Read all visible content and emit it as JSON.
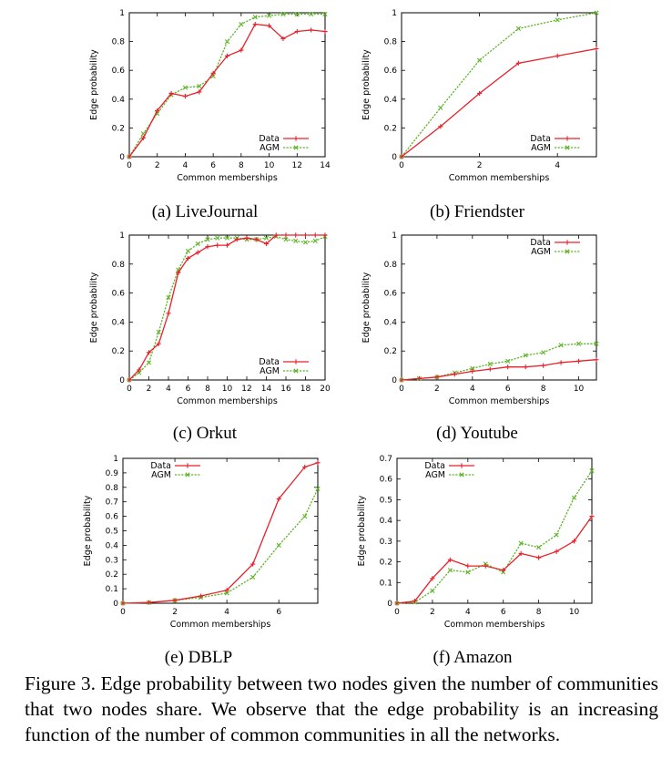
{
  "caption": "Figure 3.    Edge probability between two nodes given the number of communities that two nodes share. We observe that the edge probability is an increasing function of the number of common communities in all the networks.",
  "colors": {
    "data": "#e8202a",
    "agm": "#5fb52a"
  },
  "chart_data": [
    {
      "type": "line",
      "subcaption": "(a)  LiveJournal",
      "xlabel": "Common memberships",
      "ylabel": "Edge probability",
      "xlim": [
        0,
        14
      ],
      "ylim": [
        0,
        1
      ],
      "xticks": [
        0,
        2,
        4,
        6,
        8,
        10,
        12,
        14
      ],
      "yticks": [
        0,
        0.2,
        0.4,
        0.6,
        0.8,
        1
      ],
      "ytick_labels": [
        "0",
        "0.2",
        "0.4",
        "0.6",
        "0.8",
        "1"
      ],
      "legend_position": "bottom-right",
      "series": [
        {
          "name": "Data",
          "x": [
            0,
            1,
            2,
            3,
            4,
            5,
            6,
            7,
            8,
            9,
            10,
            11,
            12,
            13,
            14
          ],
          "y": [
            0,
            0.13,
            0.32,
            0.44,
            0.42,
            0.45,
            0.58,
            0.7,
            0.74,
            0.92,
            0.91,
            0.82,
            0.87,
            0.88,
            0.87
          ]
        },
        {
          "name": "AGM",
          "x": [
            0,
            1,
            2,
            3,
            4,
            5,
            6,
            7,
            8,
            9,
            10,
            11,
            12,
            13,
            14
          ],
          "y": [
            0,
            0.16,
            0.3,
            0.43,
            0.48,
            0.49,
            0.56,
            0.8,
            0.92,
            0.97,
            0.98,
            0.99,
            0.99,
            0.99,
            0.99
          ]
        }
      ]
    },
    {
      "type": "line",
      "subcaption": "(b)  Friendster",
      "xlabel": "Common memberships",
      "ylabel": "Edge probability",
      "xlim": [
        0,
        5
      ],
      "ylim": [
        0,
        1
      ],
      "xticks": [
        0,
        2,
        4
      ],
      "yticks": [
        0,
        0.2,
        0.4,
        0.6,
        0.8,
        1
      ],
      "ytick_labels": [
        "0",
        "0.2",
        "0.4",
        "0.6",
        "0.8",
        "1"
      ],
      "legend_position": "bottom-right",
      "series": [
        {
          "name": "Data",
          "x": [
            0,
            1,
            2,
            3,
            4,
            5
          ],
          "y": [
            0,
            0.21,
            0.44,
            0.65,
            0.7,
            0.75
          ]
        },
        {
          "name": "AGM",
          "x": [
            0,
            1,
            2,
            3,
            4,
            5
          ],
          "y": [
            0,
            0.34,
            0.67,
            0.89,
            0.95,
            1.0
          ]
        }
      ]
    },
    {
      "type": "line",
      "subcaption": "(c)  Orkut",
      "xlabel": "Common memberships",
      "ylabel": "Edge probability",
      "xlim": [
        0,
        20
      ],
      "ylim": [
        0,
        1
      ],
      "xticks": [
        0,
        2,
        4,
        6,
        8,
        10,
        12,
        14,
        16,
        18,
        20
      ],
      "yticks": [
        0,
        0.2,
        0.4,
        0.6,
        0.8,
        1
      ],
      "ytick_labels": [
        "0",
        "0.2",
        "0.4",
        "0.6",
        "0.8",
        "1"
      ],
      "legend_position": "bottom-right",
      "series": [
        {
          "name": "Data",
          "x": [
            0,
            1,
            2,
            3,
            4,
            5,
            6,
            7,
            8,
            9,
            10,
            11,
            12,
            13,
            14,
            15,
            16,
            17,
            18,
            19,
            20
          ],
          "y": [
            0,
            0.07,
            0.19,
            0.25,
            0.46,
            0.74,
            0.84,
            0.88,
            0.92,
            0.93,
            0.93,
            0.97,
            0.98,
            0.97,
            0.94,
            1.0,
            1.0,
            1.0,
            1.0,
            1.0,
            1.0
          ]
        },
        {
          "name": "AGM",
          "x": [
            0,
            1,
            2,
            3,
            4,
            5,
            6,
            7,
            8,
            9,
            10,
            11,
            12,
            13,
            14,
            15,
            16,
            17,
            18,
            19,
            20
          ],
          "y": [
            0,
            0.05,
            0.12,
            0.33,
            0.57,
            0.76,
            0.89,
            0.94,
            0.97,
            0.98,
            0.98,
            0.98,
            0.97,
            0.97,
            0.98,
            0.99,
            0.97,
            0.96,
            0.95,
            0.96,
            0.99
          ]
        }
      ]
    },
    {
      "type": "line",
      "subcaption": "(d)  Youtube",
      "xlabel": "Common memberships",
      "ylabel": "Edge probability",
      "xlim": [
        0,
        11
      ],
      "ylim": [
        0,
        1
      ],
      "xticks": [
        0,
        2,
        4,
        6,
        8,
        10
      ],
      "yticks": [
        0,
        0.2,
        0.4,
        0.6,
        0.8,
        1
      ],
      "ytick_labels": [
        "0",
        "0.2",
        "0.4",
        "0.6",
        "0.8",
        "1"
      ],
      "legend_position": "top-right",
      "series": [
        {
          "name": "Data",
          "x": [
            0,
            1,
            2,
            3,
            4,
            5,
            6,
            7,
            8,
            9,
            10,
            11
          ],
          "y": [
            0,
            0.01,
            0.02,
            0.04,
            0.06,
            0.075,
            0.09,
            0.09,
            0.1,
            0.12,
            0.13,
            0.14
          ]
        },
        {
          "name": "AGM",
          "x": [
            0,
            1,
            2,
            3,
            4,
            5,
            6,
            7,
            8,
            9,
            10,
            11
          ],
          "y": [
            0,
            0.01,
            0.02,
            0.05,
            0.08,
            0.11,
            0.13,
            0.17,
            0.19,
            0.24,
            0.25,
            0.25
          ]
        }
      ]
    },
    {
      "type": "line",
      "subcaption": "(e)  DBLP",
      "xlabel": "Common memberships",
      "ylabel": "Edge probability",
      "xlim": [
        0,
        7.5
      ],
      "ylim": [
        0,
        1
      ],
      "xticks": [
        0,
        2,
        4,
        6
      ],
      "yticks": [
        0,
        0.1,
        0.2,
        0.3,
        0.4,
        0.5,
        0.6,
        0.7,
        0.8,
        0.9,
        1
      ],
      "ytick_labels": [
        "0",
        "0.1",
        "0.2",
        "0.3",
        "0.4",
        "0.5",
        "0.6",
        "0.7",
        "0.8",
        "0.9",
        "1"
      ],
      "legend_position": "top-left",
      "series": [
        {
          "name": "Data",
          "x": [
            0,
            1,
            2,
            3,
            4,
            5,
            6,
            7,
            7.5
          ],
          "y": [
            0,
            0.005,
            0.02,
            0.05,
            0.09,
            0.27,
            0.72,
            0.94,
            0.97
          ]
        },
        {
          "name": "AGM",
          "x": [
            0,
            1,
            2,
            3,
            4,
            5,
            6,
            7,
            7.5
          ],
          "y": [
            0,
            0.005,
            0.02,
            0.04,
            0.07,
            0.18,
            0.4,
            0.6,
            0.79
          ]
        }
      ]
    },
    {
      "type": "line",
      "subcaption": "(f)  Amazon",
      "xlabel": "Common memberships",
      "ylabel": "Edge probability",
      "xlim": [
        0,
        11
      ],
      "ylim": [
        0,
        0.7
      ],
      "xticks": [
        0,
        2,
        4,
        6,
        8,
        10
      ],
      "yticks": [
        0,
        0.1,
        0.2,
        0.3,
        0.4,
        0.5,
        0.6,
        0.7
      ],
      "ytick_labels": [
        "0",
        "0.1",
        "0.2",
        "0.3",
        "0.4",
        "0.5",
        "0.6",
        "0.7"
      ],
      "legend_position": "top-left",
      "series": [
        {
          "name": "Data",
          "x": [
            0,
            1,
            2,
            3,
            4,
            5,
            6,
            7,
            8,
            9,
            10,
            11
          ],
          "y": [
            0,
            0.01,
            0.12,
            0.21,
            0.18,
            0.18,
            0.16,
            0.24,
            0.22,
            0.25,
            0.3,
            0.42
          ]
        },
        {
          "name": "AGM",
          "x": [
            0,
            1,
            2,
            3,
            4,
            5,
            6,
            7,
            8,
            9,
            10,
            11
          ],
          "y": [
            0,
            0.005,
            0.06,
            0.16,
            0.15,
            0.19,
            0.15,
            0.29,
            0.27,
            0.33,
            0.51,
            0.64
          ]
        }
      ]
    }
  ]
}
